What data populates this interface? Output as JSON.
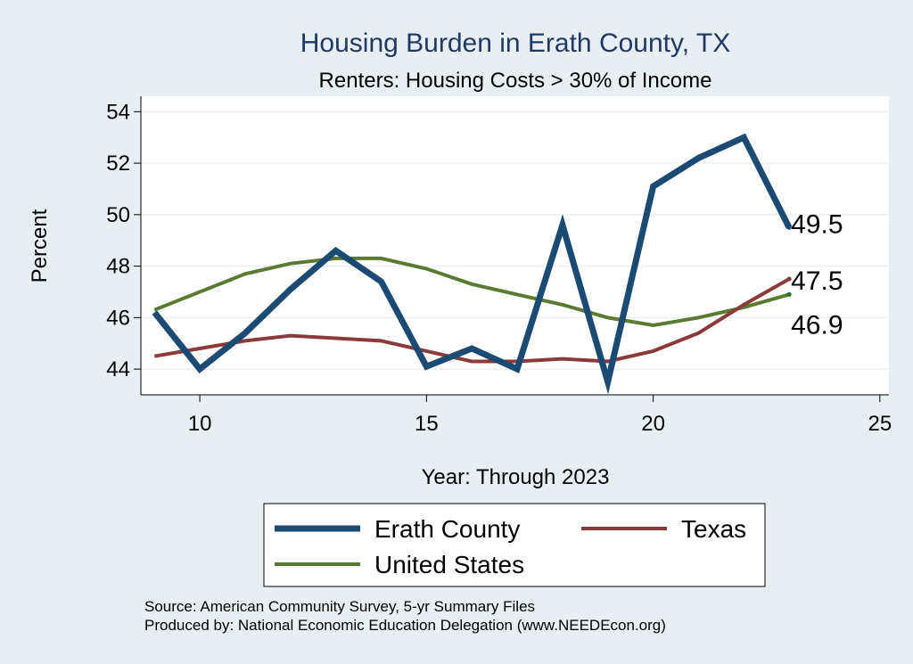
{
  "chart_data": {
    "type": "line",
    "title": "Housing Burden in Erath County, TX",
    "subtitle": "Renters: Housing Costs > 30% of Income",
    "xlabel": "Year: Through 2023",
    "ylabel": "Percent",
    "xlim": [
      8.7,
      25.2
    ],
    "ylim": [
      43.0,
      54.6
    ],
    "xticks": [
      10,
      15,
      20,
      25
    ],
    "yticks": [
      44,
      46,
      48,
      50,
      52,
      54
    ],
    "grid": true,
    "x": [
      9,
      10,
      11,
      12,
      13,
      14,
      15,
      16,
      17,
      18,
      19,
      20,
      21,
      22,
      23
    ],
    "series": [
      {
        "name": "Erath County",
        "color": "#1b4a72",
        "values": [
          46.2,
          44.0,
          45.4,
          47.1,
          48.6,
          47.4,
          44.1,
          44.8,
          44.0,
          49.6,
          43.5,
          51.1,
          52.2,
          53.0,
          49.5
        ],
        "end_label": "49.5"
      },
      {
        "name": "Texas",
        "color": "#8b3a3a",
        "values": [
          44.5,
          44.8,
          45.1,
          45.3,
          45.2,
          45.1,
          44.7,
          44.3,
          44.3,
          44.4,
          44.3,
          44.7,
          45.4,
          46.5,
          47.5
        ],
        "end_label": "47.5"
      },
      {
        "name": "United States",
        "color": "#5a7a32",
        "values": [
          46.3,
          47.0,
          47.7,
          48.1,
          48.3,
          48.3,
          47.9,
          47.3,
          46.9,
          46.5,
          46.0,
          45.7,
          46.0,
          46.4,
          46.9
        ],
        "end_label": "46.9"
      }
    ],
    "legend": {
      "placement": "bottom",
      "order": [
        "Erath County",
        "Texas",
        "United States"
      ]
    },
    "notes": [
      "Source: American Community Survey, 5-yr Summary Files",
      "Produced by: National Economic Education Delegation (www.NEEDEcon.org)"
    ]
  }
}
